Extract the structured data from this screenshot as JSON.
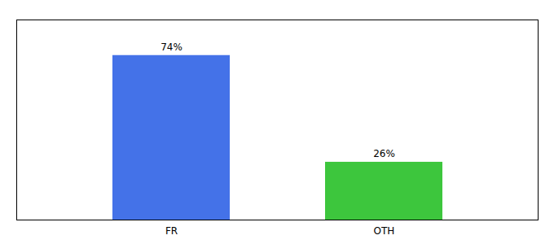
{
  "chart_data": {
    "type": "bar",
    "categories": [
      "FR",
      "OTH"
    ],
    "values": [
      74,
      26
    ],
    "value_labels": [
      "74%",
      "26%"
    ],
    "colors": [
      "#4472e8",
      "#3dc63d"
    ],
    "ylim": [
      0,
      90
    ],
    "data_labels": true,
    "tick_labels": "x"
  }
}
